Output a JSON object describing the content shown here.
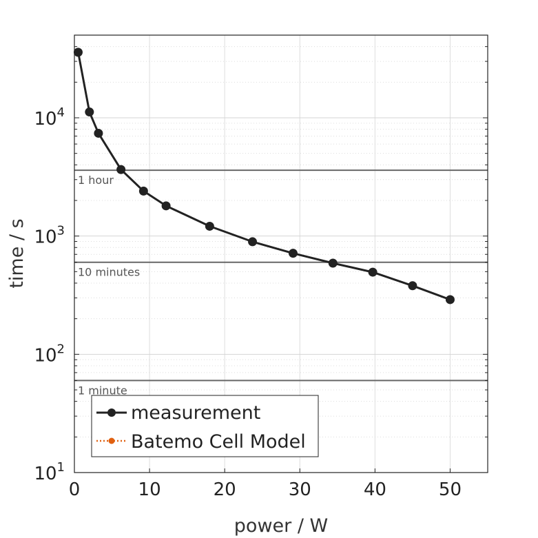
{
  "chart_data": {
    "type": "line",
    "title": "",
    "xlabel": "power / W",
    "ylabel": "time / s",
    "xlim": [
      0,
      55
    ],
    "ylim": [
      10,
      50000
    ],
    "yscale": "log",
    "grid": true,
    "legend_position": "bottom-left",
    "x_ticks": [
      "0",
      "10",
      "20",
      "30",
      "40",
      "50"
    ],
    "y_ticks": [
      {
        "base": "10",
        "exp": "1"
      },
      {
        "base": "10",
        "exp": "2"
      },
      {
        "base": "10",
        "exp": "3"
      },
      {
        "base": "10",
        "exp": "4"
      }
    ],
    "series": [
      {
        "name": "measurement",
        "color": "#222222",
        "marker": "circle",
        "x": [
          0.5,
          2.0,
          3.2,
          6.2,
          9.2,
          12.2,
          18.0,
          23.7,
          29.1,
          34.4,
          39.7,
          45.0,
          50.0
        ],
        "y": [
          35800,
          11200,
          7400,
          3650,
          2400,
          1800,
          1210,
          895,
          715,
          590,
          495,
          380,
          290
        ]
      },
      {
        "name": "Batemo Cell Model",
        "color": "#e06010",
        "marker": "circle",
        "linestyle": "dotted",
        "x": [],
        "y": []
      }
    ],
    "annotations": [
      {
        "label": "1 hour",
        "y": 3600
      },
      {
        "label": "10 minutes",
        "y": 600
      },
      {
        "label": "1 minute",
        "y": 60
      }
    ]
  }
}
